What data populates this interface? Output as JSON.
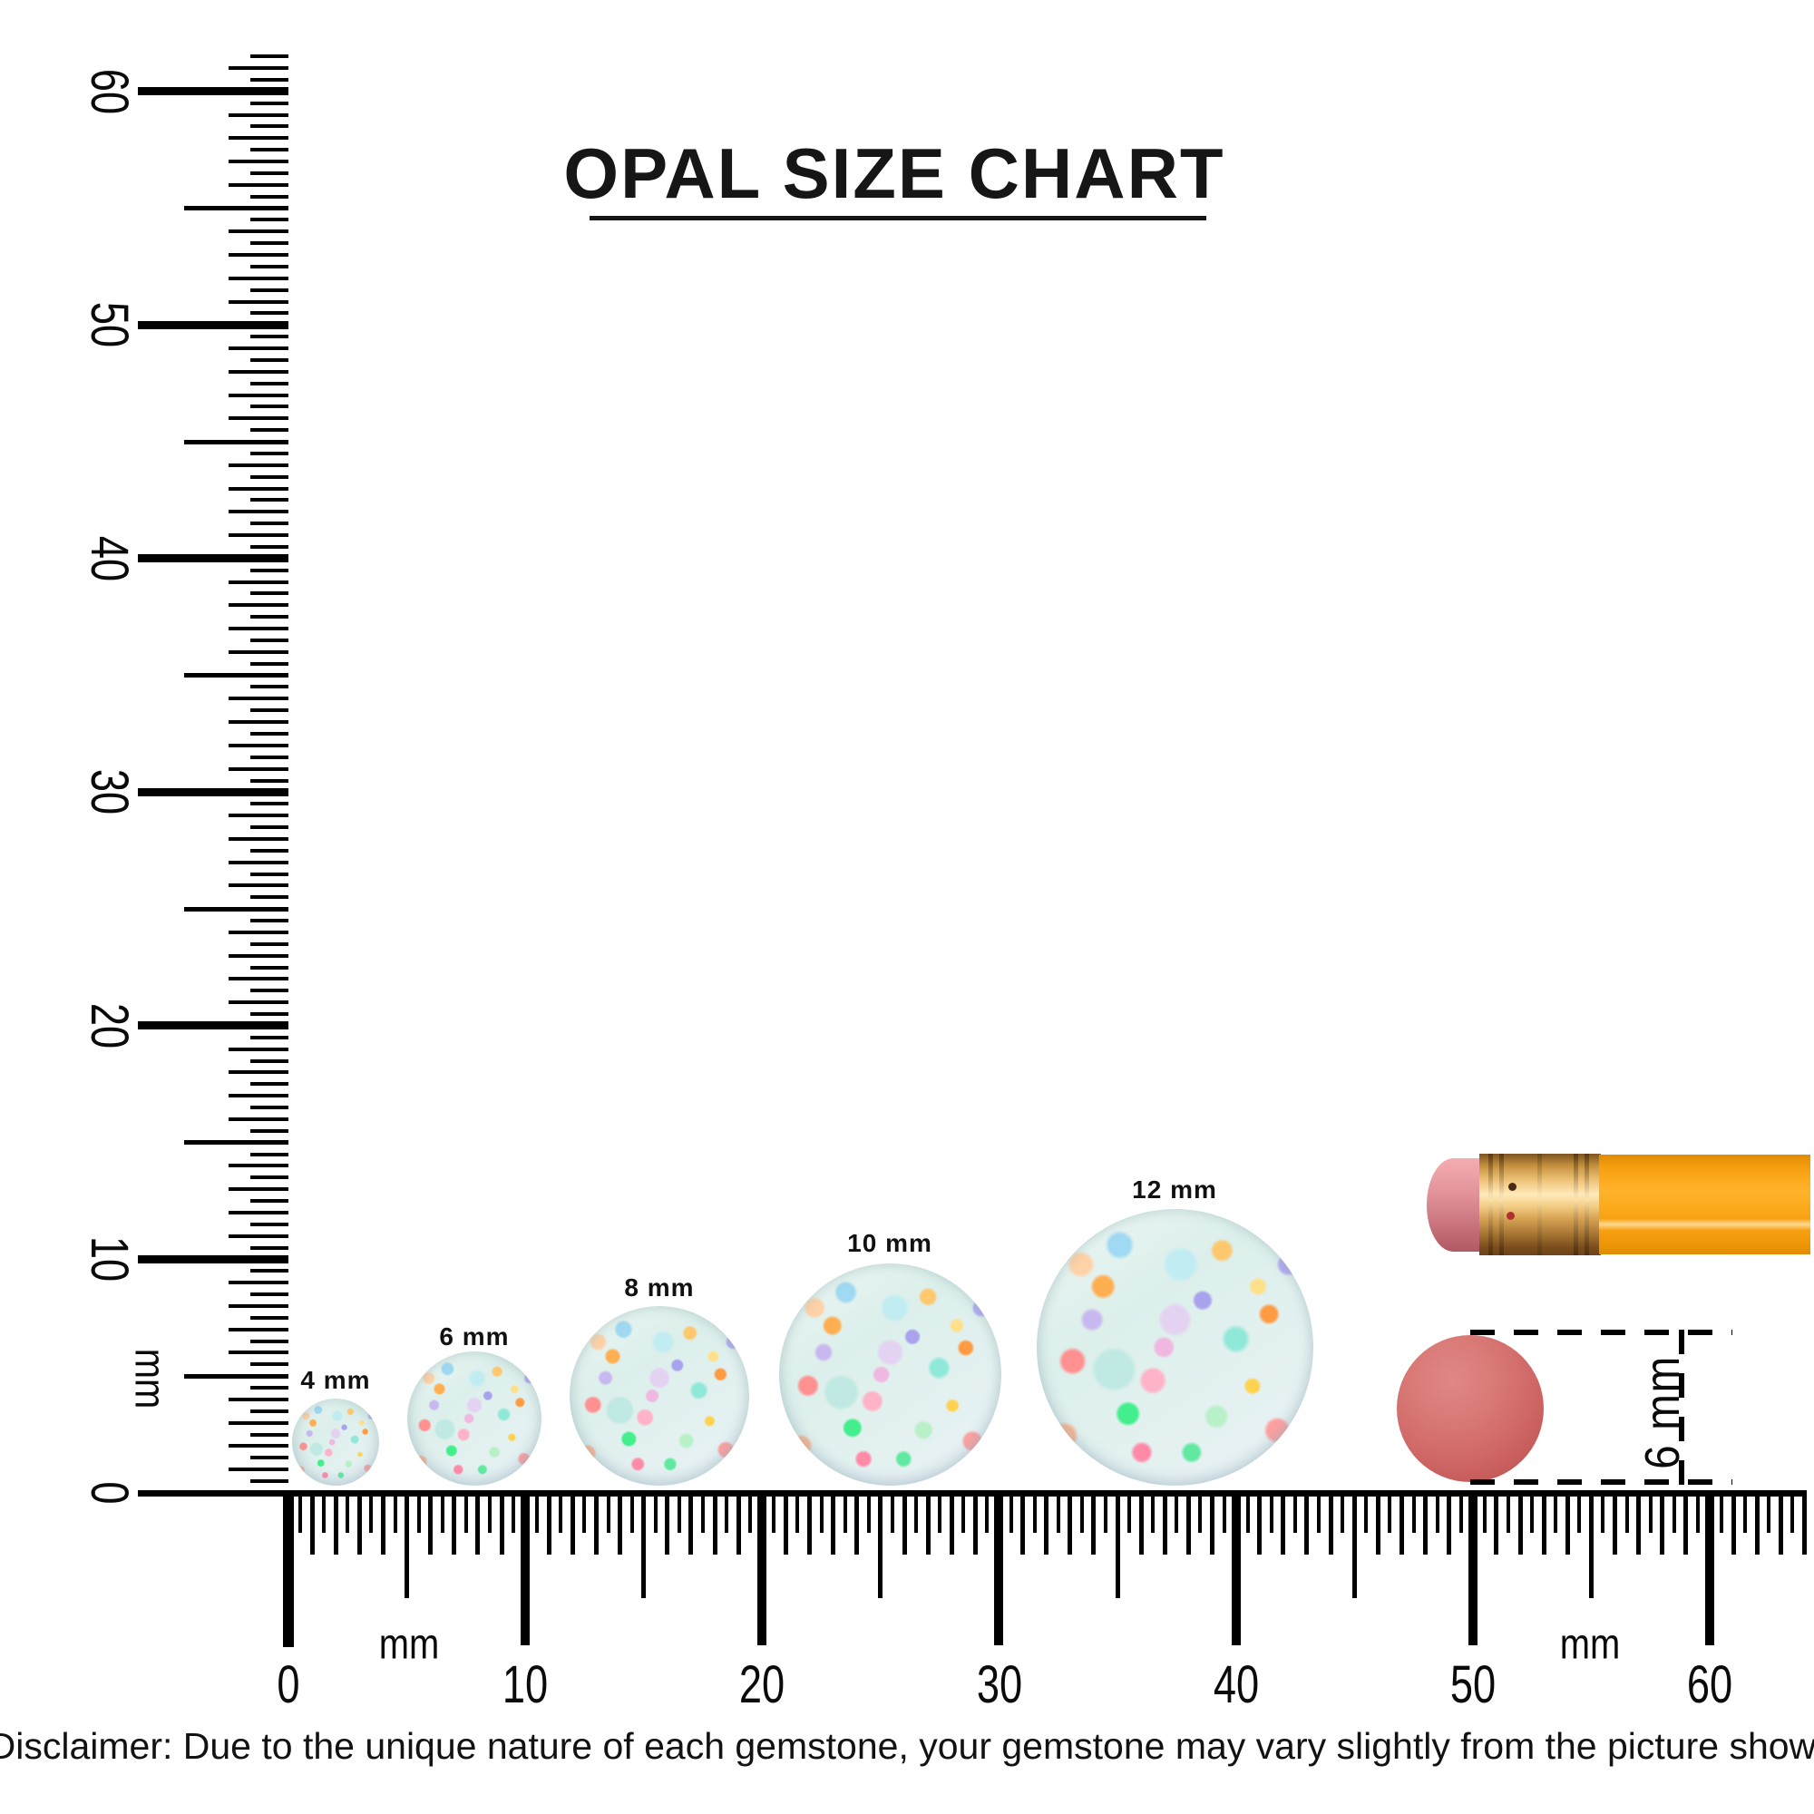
{
  "title": "OPAL SIZE CHART",
  "ruler": {
    "vertical_numbers": [
      "60",
      "50",
      "40",
      "30",
      "20",
      "10",
      "0"
    ],
    "horizontal_numbers": [
      "0",
      "10",
      "20",
      "30",
      "40",
      "50",
      "60"
    ],
    "unit": "mm"
  },
  "opals": [
    {
      "label": "4 mm",
      "size_mm": 4
    },
    {
      "label": "6 mm",
      "size_mm": 6
    },
    {
      "label": "8 mm",
      "size_mm": 8
    },
    {
      "label": "10 mm",
      "size_mm": 10
    },
    {
      "label": "12 mm",
      "size_mm": 12
    }
  ],
  "comparison": {
    "object": "pencil eraser",
    "dimension_label": "6 mm"
  },
  "disclaimer": "Disclaimer: Due to the unique nature of each gemstone, your gemstone may vary slightly from the picture shown.",
  "colors": {
    "pencil_orange": "#f7a011",
    "pencil_eraser_pink": "#e2929b",
    "ferrule_gold": "#eec378",
    "eraser_disc_red": "#cf6766",
    "tick_black": "#000000",
    "ink": "#111111"
  }
}
